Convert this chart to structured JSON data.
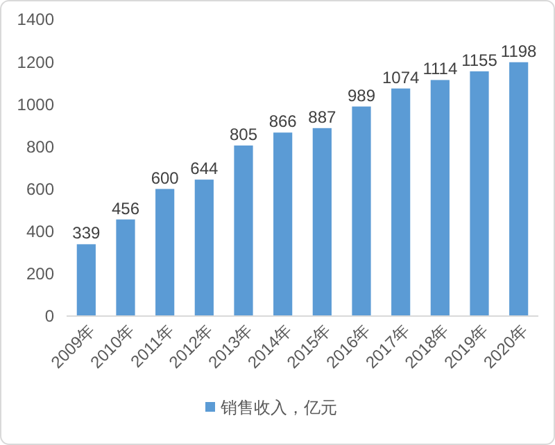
{
  "chart_data": {
    "type": "bar",
    "categories": [
      "2009年",
      "2010年",
      "2011年",
      "2012年",
      "2013年",
      "2014年",
      "2015年",
      "2016年",
      "2017年",
      "2018年",
      "2019年",
      "2020年"
    ],
    "series": [
      {
        "name": "销售收入，亿元",
        "color": "#5b9bd5",
        "values": [
          339,
          456,
          600,
          644,
          805,
          866,
          887,
          989,
          1074,
          1114,
          1155,
          1198
        ]
      }
    ],
    "ylim": [
      0,
      1400
    ],
    "yticks": [
      0,
      200,
      400,
      600,
      800,
      1000,
      1200,
      1400
    ],
    "data_labels": true,
    "legend": "bottom",
    "grid": false
  }
}
